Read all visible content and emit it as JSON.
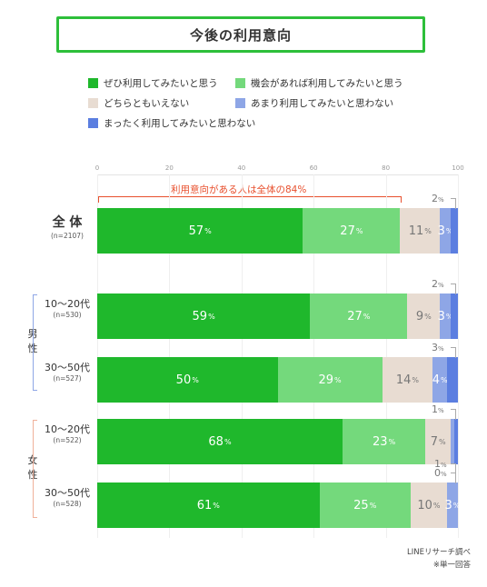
{
  "title": "今後の利用意向",
  "legend": [
    {
      "label": "ぜひ利用してみたいと思う",
      "color": "#1fb82c"
    },
    {
      "label": "機会があれば利用してみたいと思う",
      "color": "#74d97c"
    },
    {
      "label": "どちらともいえない",
      "color": "#e8dcd2"
    },
    {
      "label": "あまり利用してみたいと思わない",
      "color": "#8ea6e6"
    },
    {
      "label": "まったく利用してみたいと思わない",
      "color": "#5b7ee0"
    }
  ],
  "axis": {
    "ticks": [
      "0",
      "20",
      "40",
      "60",
      "80",
      "100"
    ]
  },
  "callout": "利用意向がある人は全体の84%",
  "groups": {
    "male": "男性",
    "female": "女性"
  },
  "rows": [
    {
      "main": "全 体",
      "sub": "",
      "n": "(n=2107)",
      "labels": [
        "57",
        "27",
        "11",
        "3",
        ""
      ],
      "outside": [
        "2"
      ]
    },
    {
      "main": "",
      "sub": "10〜20代",
      "n": "(n=530)",
      "labels": [
        "59",
        "27",
        "9",
        "3",
        ""
      ],
      "outside": [
        "2"
      ]
    },
    {
      "main": "",
      "sub": "30〜50代",
      "n": "(n=527)",
      "labels": [
        "50",
        "29",
        "14",
        "4",
        ""
      ],
      "outside": [
        "3"
      ]
    },
    {
      "main": "",
      "sub": "10〜20代",
      "n": "(n=522)",
      "labels": [
        "68",
        "23",
        "7",
        "",
        ""
      ],
      "outside": [
        "1"
      ]
    },
    {
      "main": "",
      "sub": "30〜50代",
      "n": "(n=528)",
      "labels": [
        "61",
        "25",
        "10",
        "3",
        ""
      ],
      "outside": [
        "1",
        "0"
      ]
    }
  ],
  "pct_symbol": "%",
  "footnote": {
    "source": "LINEリサーチ調べ",
    "note": "※単一回答"
  },
  "chart_data": {
    "type": "bar",
    "orientation": "horizontal",
    "stacked": true,
    "title": "今後の利用意向",
    "xlim": [
      0,
      100
    ],
    "categories": [
      "全体 (n=2107)",
      "男性 10〜20代 (n=530)",
      "男性 30〜50代 (n=527)",
      "女性 10〜20代 (n=522)",
      "女性 30〜50代 (n=528)"
    ],
    "series": [
      {
        "name": "ぜひ利用してみたいと思う",
        "values": [
          57,
          59,
          50,
          68,
          61
        ]
      },
      {
        "name": "機会があれば利用してみたいと思う",
        "values": [
          27,
          27,
          29,
          23,
          25
        ]
      },
      {
        "name": "どちらともいえない",
        "values": [
          11,
          9,
          14,
          7,
          10
        ]
      },
      {
        "name": "あまり利用してみたいと思わない",
        "values": [
          3,
          3,
          4,
          1,
          3
        ]
      },
      {
        "name": "まったく利用してみたいと思わない",
        "values": [
          2,
          2,
          3,
          1,
          0
        ]
      }
    ],
    "annotation": "利用意向がある人は全体の84%",
    "legend_position": "top"
  }
}
